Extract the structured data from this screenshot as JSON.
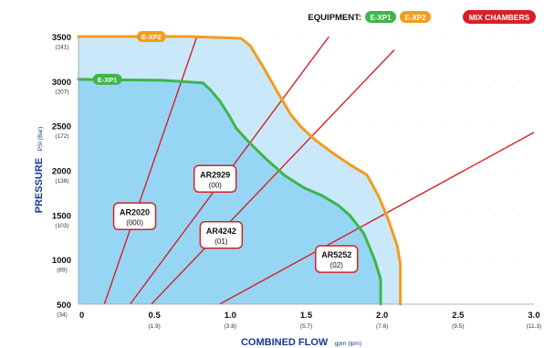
{
  "chart_data": {
    "type": "area",
    "header": {
      "equipment_label": "EQUIPMENT:",
      "badges": [
        "E-XP1",
        "E-XP2"
      ],
      "mix_chambers_label": "MIX CHAMBERS"
    },
    "xlabel": "COMBINED FLOW",
    "xlabel_unit": "gpm (lpm)",
    "ylabel": "PRESSURE",
    "ylabel_unit": "PSI (Bar)",
    "xlim": [
      0,
      3.0
    ],
    "ylim": [
      500,
      3500
    ],
    "x_ticks": [
      {
        "value": 0,
        "label": "0",
        "sub": ""
      },
      {
        "value": 0.5,
        "label": "0.5",
        "sub": "(1.9)"
      },
      {
        "value": 1.0,
        "label": "1.0",
        "sub": "(3.8)"
      },
      {
        "value": 1.5,
        "label": "1.5",
        "sub": "(5.7)"
      },
      {
        "value": 2.0,
        "label": "2.0",
        "sub": "(7.6)"
      },
      {
        "value": 2.5,
        "label": "2.5",
        "sub": "(9.5)"
      },
      {
        "value": 3.0,
        "label": "3.0",
        "sub": "(11.3)"
      }
    ],
    "y_ticks": [
      {
        "value": 500,
        "label": "500",
        "sub": "(34)"
      },
      {
        "value": 1000,
        "label": "1000",
        "sub": "(69)"
      },
      {
        "value": 1500,
        "label": "1500",
        "sub": "(103)"
      },
      {
        "value": 2000,
        "label": "2000",
        "sub": "(138)"
      },
      {
        "value": 2500,
        "label": "2500",
        "sub": "(172)"
      },
      {
        "value": 3000,
        "label": "3000",
        "sub": "(207)"
      },
      {
        "value": 3500,
        "label": "3500",
        "sub": "(241)"
      }
    ],
    "series": [
      {
        "name": "E-XP2",
        "color": "#f39c1e",
        "fill": "#c9e9fa",
        "label_at": [
          0.48,
          3500
        ],
        "points": [
          [
            0,
            3500
          ],
          [
            0.73,
            3500
          ],
          [
            1.07,
            3480
          ],
          [
            1.13,
            3400
          ],
          [
            1.22,
            3150
          ],
          [
            1.31,
            2880
          ],
          [
            1.4,
            2620
          ],
          [
            1.47,
            2480
          ],
          [
            1.56,
            2340
          ],
          [
            1.67,
            2200
          ],
          [
            1.8,
            2050
          ],
          [
            1.9,
            1950
          ],
          [
            1.98,
            1700
          ],
          [
            2.04,
            1450
          ],
          [
            2.1,
            1150
          ],
          [
            2.12,
            950
          ],
          [
            2.12,
            500
          ]
        ]
      },
      {
        "name": "E-XP1",
        "color": "#3db54a",
        "fill": "#96d6f4",
        "label_at": [
          0.19,
          3020
        ],
        "points": [
          [
            0,
            3020
          ],
          [
            0.55,
            3010
          ],
          [
            0.82,
            2980
          ],
          [
            0.87,
            2900
          ],
          [
            0.93,
            2780
          ],
          [
            0.99,
            2620
          ],
          [
            1.04,
            2470
          ],
          [
            1.12,
            2320
          ],
          [
            1.24,
            2120
          ],
          [
            1.36,
            1940
          ],
          [
            1.49,
            1800
          ],
          [
            1.6,
            1720
          ],
          [
            1.71,
            1610
          ],
          [
            1.79,
            1490
          ],
          [
            1.88,
            1290
          ],
          [
            1.95,
            1000
          ],
          [
            1.99,
            780
          ],
          [
            1.99,
            500
          ]
        ]
      }
    ],
    "mix_chambers": {
      "color": "#d62027",
      "lines": [
        {
          "name": "AR2020",
          "code": "(000)",
          "from": [
            0.17,
            500
          ],
          "to": [
            0.78,
            3500
          ],
          "label_at": [
            0.37,
            1480
          ]
        },
        {
          "name": "AR2929",
          "code": "(00)",
          "from": [
            0.34,
            500
          ],
          "to": [
            1.65,
            3500
          ],
          "label_at": [
            0.9,
            1900
          ]
        },
        {
          "name": "AR4242",
          "code": "(01)",
          "from": [
            0.48,
            500
          ],
          "to": [
            2.08,
            3350
          ],
          "label_at": [
            0.94,
            1270
          ]
        },
        {
          "name": "AR5252",
          "code": "(02)",
          "from": [
            0.93,
            500
          ],
          "to": [
            3.08,
            2500
          ],
          "label_at": [
            1.7,
            1000
          ]
        }
      ]
    },
    "grid": "dotted"
  }
}
